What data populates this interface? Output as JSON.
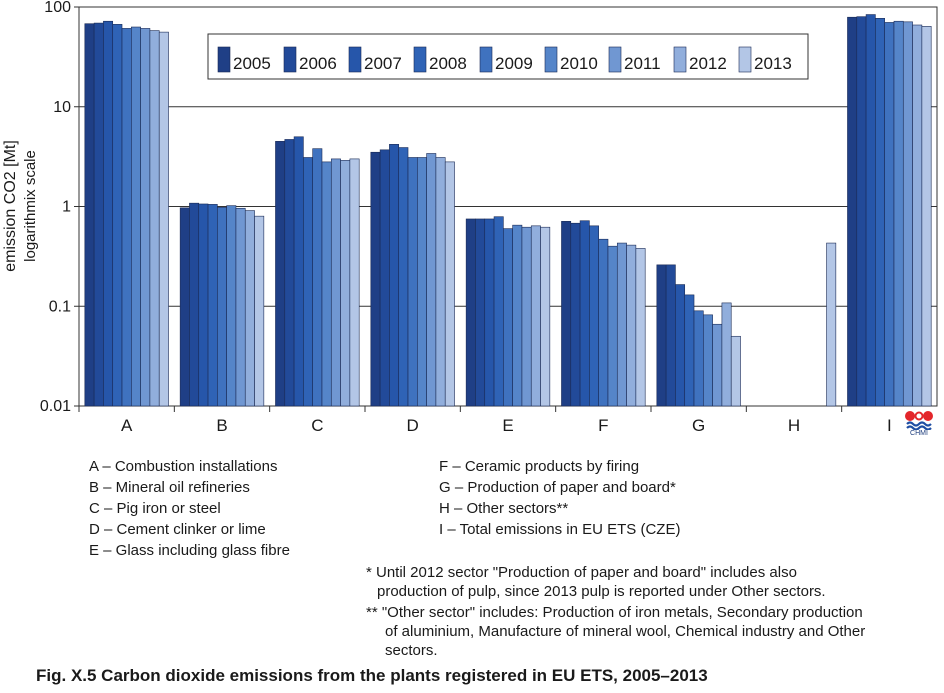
{
  "chart_data": {
    "type": "bar",
    "y_scale": "log",
    "ylim": [
      0.01,
      100
    ],
    "y_ticks": [
      "0.01",
      "0.1",
      "1",
      "10",
      "100"
    ],
    "ylabel": "emission CO2 [Mt]",
    "ylabel_sub": "logarithmix scale",
    "grid": "horizontal",
    "legend_position": "top",
    "categories": [
      "A",
      "B",
      "C",
      "D",
      "E",
      "F",
      "G",
      "H",
      "I"
    ],
    "series": [
      {
        "name": "2005",
        "color": "#1f3f86",
        "values": [
          68,
          0.97,
          4.5,
          3.5,
          0.75,
          0.71,
          0.26,
          null,
          79
        ]
      },
      {
        "name": "2006",
        "color": "#224a99",
        "values": [
          69,
          1.08,
          4.7,
          3.7,
          0.75,
          0.68,
          0.26,
          null,
          80
        ]
      },
      {
        "name": "2007",
        "color": "#2656aa",
        "values": [
          72,
          1.06,
          5.0,
          4.2,
          0.75,
          0.72,
          0.165,
          null,
          84
        ]
      },
      {
        "name": "2008",
        "color": "#2f63b6",
        "values": [
          67,
          1.05,
          3.1,
          3.9,
          0.79,
          0.64,
          0.13,
          null,
          77
        ]
      },
      {
        "name": "2009",
        "color": "#3f72bf",
        "values": [
          61,
          0.98,
          3.8,
          3.1,
          0.6,
          0.47,
          0.09,
          null,
          70
        ]
      },
      {
        "name": "2010",
        "color": "#5585c9",
        "values": [
          63,
          1.02,
          2.8,
          3.1,
          0.65,
          0.4,
          0.082,
          null,
          72
        ]
      },
      {
        "name": "2011",
        "color": "#7097d2",
        "values": [
          61,
          0.96,
          3.0,
          3.4,
          0.62,
          0.43,
          0.066,
          null,
          71
        ]
      },
      {
        "name": "2012",
        "color": "#91aedc",
        "values": [
          58,
          0.91,
          2.9,
          3.1,
          0.64,
          0.41,
          0.108,
          null,
          66
        ]
      },
      {
        "name": "2013",
        "color": "#b3c6e6",
        "values": [
          56,
          0.8,
          3.0,
          2.8,
          0.62,
          0.38,
          0.05,
          0.43,
          64
        ]
      }
    ]
  },
  "legend_left": [
    "A – Combustion installations",
    "B – Mineral oil refineries",
    "C – Pig iron or steel",
    "D – Cement clinker or lime",
    "E – Glass including glass fibre"
  ],
  "legend_right": [
    "F – Ceramic products by firing",
    "G – Production of paper and board*",
    "H – Other sectors**",
    "I – Total emissions in EU ETS (CZE)"
  ],
  "footnotes": [
    "* Until 2012 sector \"Production of paper and board\" includes also",
    "production of pulp, since 2013 pulp is reported under Other sectors.",
    "** \"Other sector\" includes: Production of iron metals, Secondary production",
    "of aluminium, Manufacture of mineral wool, Chemical industry and Other",
    "sectors."
  ],
  "caption": "Fig. X.5  Carbon dioxide emissions from the plants registered in EU ETS, 2005–2013",
  "logo_text": "CHMI"
}
